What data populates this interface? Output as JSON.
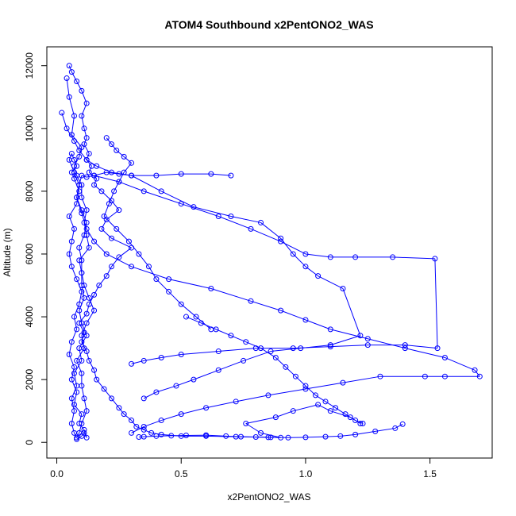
{
  "chart_data": {
    "type": "line",
    "title": "ATOM4 Southbound x2PentONO2_WAS",
    "xlabel": "x2PentONO2_WAS",
    "ylabel": "Altitude (m)",
    "xlim": [
      -0.04,
      1.75
    ],
    "ylim": [
      -500,
      12600
    ],
    "xticks": [
      0.0,
      0.5,
      1.0,
      1.5
    ],
    "xtick_labels": [
      "0.0",
      "0.5",
      "1.0",
      "1.5"
    ],
    "yticks": [
      0,
      2000,
      4000,
      6000,
      8000,
      10000,
      12000
    ],
    "ytick_labels": [
      "0",
      "2000",
      "4000",
      "6000",
      "8000",
      "10000",
      "12000"
    ],
    "series_color": "#0000ff",
    "marker": "open-circle",
    "grid": false,
    "legend": "none",
    "series": [
      {
        "x": [
          0.08,
          0.1,
          0.11,
          0.12,
          0.11,
          0.09,
          0.1,
          0.07,
          0.08,
          0.06,
          0.07,
          0.05,
          0.06,
          0.08,
          0.07,
          0.09,
          0.1,
          0.08,
          0.06,
          0.05,
          0.06,
          0.07,
          0.05,
          0.08,
          0.09,
          0.07,
          0.06,
          0.08,
          0.07,
          0.06,
          0.05,
          0.07,
          0.09,
          0.08,
          0.1,
          0.12,
          0.11,
          0.09,
          0.1,
          0.1,
          0.11,
          0.13,
          0.15,
          0.12,
          0.1,
          0.11,
          0.08,
          0.1,
          0.1,
          0.11,
          0.12,
          0.1,
          0.09,
          0.08,
          0.07,
          0.06,
          0.07,
          0.06,
          0.08,
          0.07,
          0.1,
          0.09,
          0.12,
          0.1,
          0.09,
          0.11,
          0.1,
          0.1,
          0.09,
          0.13,
          0.12,
          0.11,
          0.12,
          0.1,
          0.1,
          0.08,
          0.07,
          0.09,
          0.1,
          0.06,
          0.07,
          0.05,
          0.04
        ],
        "y": [
          100,
          200,
          300,
          150,
          400,
          600,
          900,
          1200,
          1600,
          2000,
          2400,
          2800,
          3200,
          3600,
          4000,
          4400,
          4800,
          5200,
          5600,
          6000,
          6400,
          6800,
          7200,
          7600,
          8000,
          8400,
          8600,
          8800,
          9000,
          9200,
          9000,
          8600,
          8200,
          7800,
          7400,
          7000,
          6600,
          6200,
          5800,
          5400,
          5000,
          4600,
          4200,
          3800,
          3400,
          3000,
          2600,
          2200,
          1800,
          1400,
          1000,
          600,
          300,
          150,
          300,
          600,
          1000,
          1400,
          1800,
          2200,
          2600,
          3000,
          3400,
          3800,
          4200,
          4600,
          5000,
          5400,
          5800,
          6200,
          6600,
          7000,
          7400,
          7800,
          8200,
          8500,
          8800,
          9100,
          9400,
          9800,
          10400,
          11000,
          11600
        ]
      },
      {
        "x": [
          0.05,
          0.06,
          0.08,
          0.1,
          0.12,
          0.1,
          0.11,
          0.12,
          0.11,
          0.13,
          0.12,
          0.14,
          0.13,
          0.16,
          0.15,
          0.18,
          0.22,
          0.25,
          0.2,
          0.18,
          0.22,
          0.3,
          0.25,
          0.22,
          0.2,
          0.17,
          0.15,
          0.13,
          0.12,
          0.09,
          0.11,
          0.1,
          0.12,
          0.13,
          0.15,
          0.16,
          0.19,
          0.22,
          0.25,
          0.27,
          0.3,
          0.32,
          0.35,
          0.38,
          0.42,
          0.5,
          0.6,
          0.72,
          0.85,
          0.9,
          0.82,
          0.76,
          0.88,
          0.95,
          1.05,
          1.1,
          1.18,
          1.22
        ],
        "y": [
          12000,
          11800,
          11500,
          11200,
          10800,
          10400,
          10000,
          9700,
          9500,
          9200,
          9000,
          8800,
          8600,
          8400,
          8200,
          8000,
          7700,
          7400,
          7100,
          6800,
          6500,
          6200,
          5900,
          5600,
          5300,
          5000,
          4700,
          4400,
          4100,
          3800,
          3500,
          3200,
          2900,
          2600,
          2300,
          2000,
          1700,
          1400,
          1100,
          900,
          700,
          500,
          400,
          300,
          250,
          200,
          200,
          180,
          160,
          150,
          300,
          600,
          800,
          1000,
          1200,
          1000,
          800,
          600
        ]
      },
      {
        "x": [
          0.02,
          0.04,
          0.07,
          0.09,
          0.12,
          0.16,
          0.22,
          0.3,
          0.42,
          0.55,
          0.7,
          0.82,
          0.9,
          0.95,
          1.0,
          1.05,
          1.15,
          1.22,
          1.1,
          0.98,
          0.86,
          0.75,
          0.65,
          0.55,
          0.48,
          0.4,
          0.35
        ],
        "y": [
          10500,
          10000,
          9600,
          9300,
          9000,
          8800,
          8600,
          8500,
          8000,
          7500,
          7200,
          7000,
          6500,
          6000,
          5600,
          5300,
          4900,
          3400,
          3100,
          3000,
          2900,
          2600,
          2300,
          2000,
          1800,
          1600,
          1400
        ]
      },
      {
        "x": [
          0.15,
          0.25,
          0.35,
          0.5,
          0.65,
          0.78,
          0.9,
          1.0,
          1.1,
          1.2,
          1.35,
          1.52,
          1.53,
          1.4,
          1.25,
          1.1,
          0.95,
          0.8,
          0.65,
          0.5,
          0.42,
          0.35,
          0.3
        ],
        "y": [
          8500,
          8300,
          8000,
          7600,
          7200,
          6800,
          6400,
          6000,
          5900,
          5900,
          5900,
          5850,
          3000,
          3100,
          3100,
          3050,
          3000,
          3000,
          2900,
          2800,
          2700,
          2600,
          2500
        ]
      },
      {
        "x": [
          0.7,
          0.62,
          0.5,
          0.4,
          0.3,
          0.25,
          0.2,
          0.15,
          0.12,
          0.1,
          0.09,
          0.08,
          0.1,
          0.12,
          0.15,
          0.2,
          0.3,
          0.45,
          0.62,
          0.78,
          0.9,
          1.0,
          1.1,
          1.25,
          1.4,
          1.56,
          1.68,
          1.7,
          1.56,
          1.48,
          1.3,
          1.15,
          1.0,
          0.85,
          0.72,
          0.6,
          0.5,
          0.42,
          0.35,
          0.3
        ],
        "y": [
          8500,
          8550,
          8550,
          8500,
          8500,
          8550,
          8600,
          8500,
          8450,
          8500,
          8200,
          7800,
          7300,
          6800,
          6400,
          6000,
          5600,
          5200,
          4900,
          4500,
          4200,
          3900,
          3600,
          3300,
          3000,
          2700,
          2300,
          2100,
          2100,
          2100,
          2100,
          1900,
          1700,
          1500,
          1300,
          1100,
          900,
          700,
          500,
          300
        ]
      },
      {
        "x": [
          0.33,
          0.35,
          0.4,
          0.46,
          0.52,
          0.6,
          0.68,
          0.74,
          0.8,
          0.86,
          0.93,
          1.0,
          1.08,
          1.14,
          1.2,
          1.28,
          1.36,
          1.39
        ],
        "y": [
          170,
          180,
          200,
          210,
          220,
          230,
          200,
          180,
          170,
          160,
          150,
          160,
          180,
          200,
          250,
          350,
          450,
          580
        ]
      },
      {
        "x": [
          0.52,
          0.58,
          0.64,
          0.7,
          0.76,
          0.82,
          0.88,
          0.92,
          0.96,
          1.0,
          1.04,
          1.08,
          1.12,
          1.16,
          1.2,
          1.23
        ],
        "y": [
          4000,
          3800,
          3600,
          3400,
          3200,
          3000,
          2700,
          2400,
          2100,
          1800,
          1500,
          1300,
          1100,
          900,
          700,
          600
        ]
      },
      {
        "x": [
          0.2,
          0.22,
          0.24,
          0.27,
          0.3,
          0.27,
          0.25,
          0.23,
          0.21,
          0.19,
          0.24,
          0.29,
          0.33,
          0.37,
          0.4,
          0.45,
          0.5,
          0.56,
          0.62
        ],
        "y": [
          9700,
          9500,
          9300,
          9100,
          8900,
          8600,
          8300,
          8000,
          7600,
          7200,
          6800,
          6400,
          6000,
          5600,
          5200,
          4800,
          4400,
          4000,
          3600
        ]
      }
    ]
  }
}
